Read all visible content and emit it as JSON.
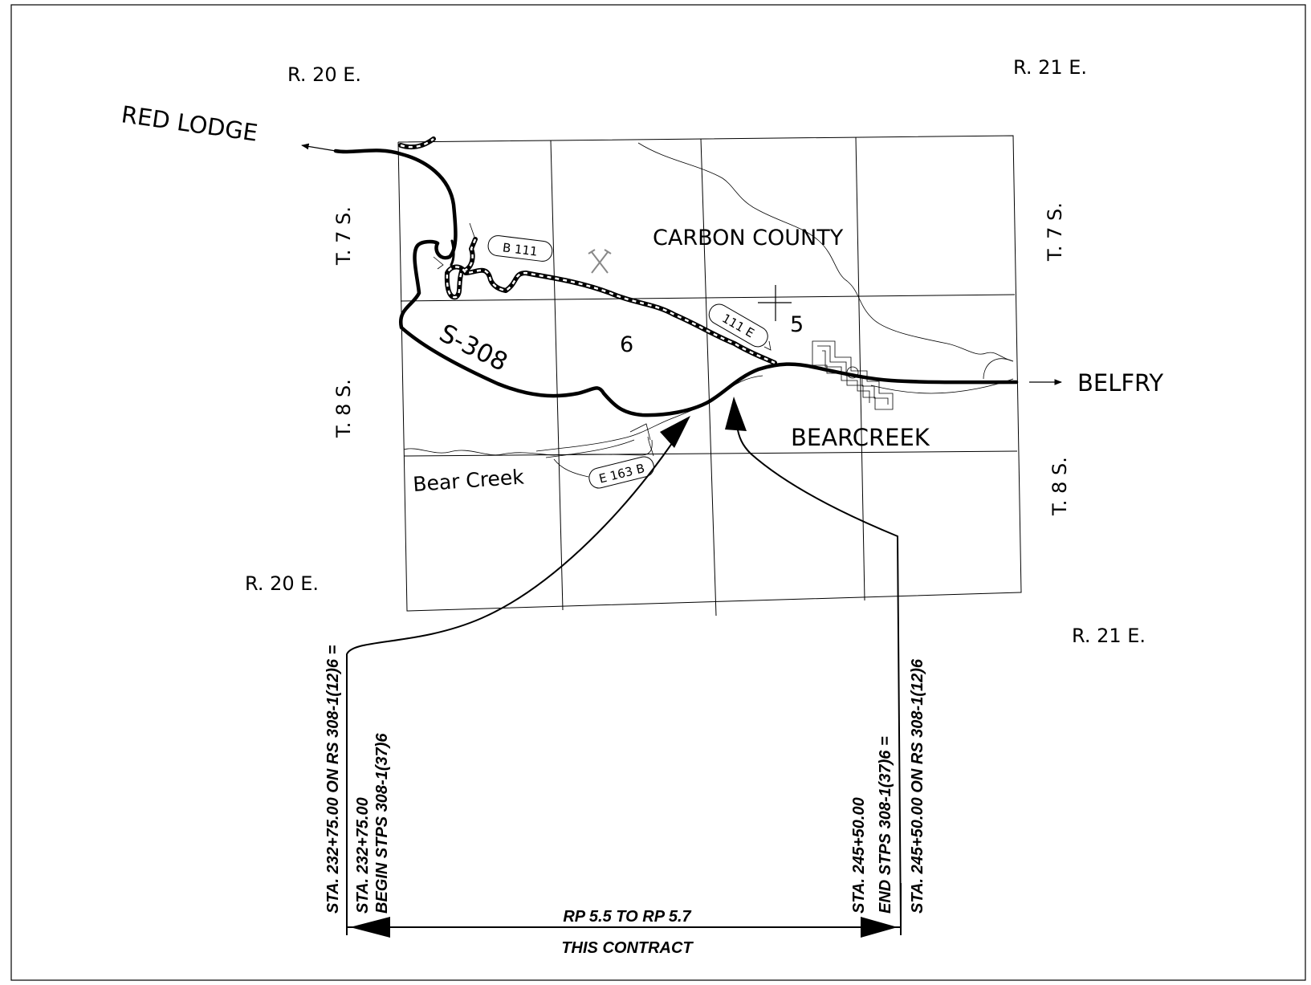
{
  "labels": {
    "range_20e_top": "R. 20 E.",
    "range_21e_top": "R. 21 E.",
    "range_20e_bottom": "R. 20 E.",
    "range_21e_bottom": "R. 21 E.",
    "red_lodge": "RED LODGE",
    "belfry": "BELFRY",
    "t7s_left": "T. 7 S.",
    "t8s_left": "T. 8 S.",
    "t7s_right": "T. 7 S.",
    "t8s_right": "T. 8 S.",
    "carbon_county": "CARBON COUNTY",
    "route": "S-308",
    "section_6": "6",
    "section_5": "5",
    "bearcreek": "BEARCREEK",
    "bear_creek": "Bear Creek",
    "shield_b111": "B   111",
    "shield_111e": "111   E",
    "shield_e163b": "E 163 B"
  },
  "annotations": {
    "sta_begin_eq": "STA. 232+75.00 ON RS 308-1(12)6 =",
    "sta_begin": "STA. 232+75.00",
    "begin_proj": "BEGIN STPS 308-1(37)6",
    "sta_end": "STA. 245+50.00",
    "end_proj": "END STPS 308-1(37)6 =",
    "sta_end_eq": "STA. 245+50.00 ON RS 308-1(12)6",
    "rp_range": "RP 5.5 TO RP 5.7",
    "contract": "THIS CONTRACT"
  },
  "colors": {
    "ink": "#000000",
    "paper": "#ffffff",
    "mine_symbol": "#888888"
  },
  "icons": {
    "mine_symbol": "crossed-hammers-icon"
  }
}
